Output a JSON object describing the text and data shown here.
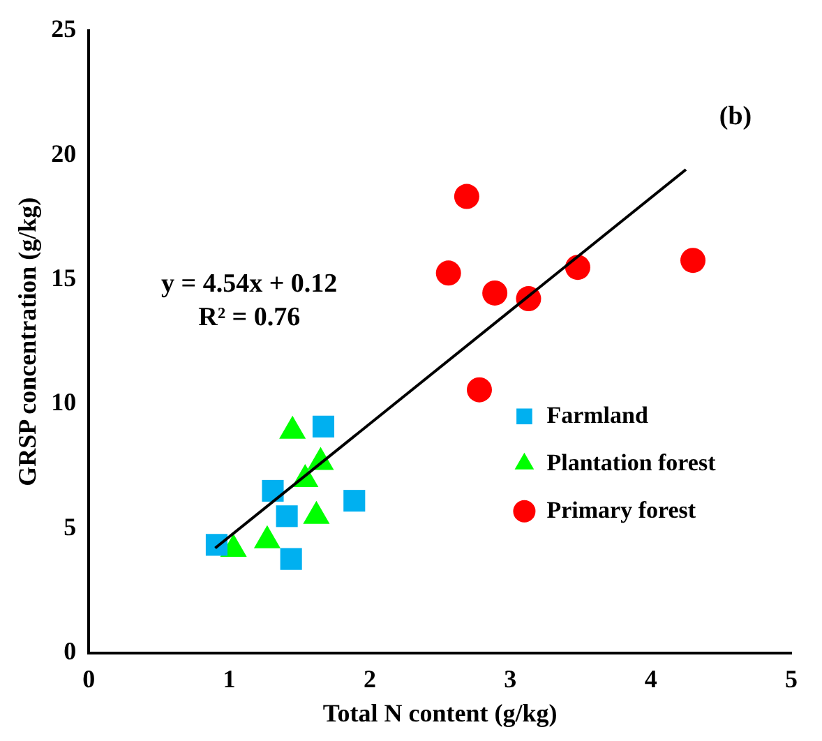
{
  "chart_data": {
    "type": "scatter",
    "xlabel": "Total N content (g/kg)",
    "ylabel": "GRSP concentration (g/kg)",
    "xlim": [
      0,
      5
    ],
    "xticks": [
      0,
      1,
      2,
      3,
      4,
      5
    ],
    "ylim": [
      0,
      25
    ],
    "yticks": [
      0,
      5,
      10,
      15,
      20,
      25
    ],
    "grid": false,
    "legend": "right",
    "annotations": [
      "(b)",
      "y = 4.54x + 0.12",
      "R² = 0.76"
    ],
    "series": [
      {
        "name": "Farmland",
        "color": "#00b0f0",
        "marker": "square",
        "x": [
          1.67,
          1.31,
          1.41,
          1.89,
          0.91,
          1.44
        ],
        "values": [
          9.09,
          6.51,
          5.49,
          6.11,
          4.34,
          3.77
        ]
      },
      {
        "name": "Plantation forest",
        "color": "#00ff00",
        "marker": "triangle",
        "x": [
          1.45,
          1.65,
          1.54,
          1.62,
          1.27,
          1.03
        ],
        "values": [
          8.91,
          7.66,
          6.97,
          5.49,
          4.51,
          4.17
        ]
      },
      {
        "name": "Primary forest",
        "color": "#ff0000",
        "marker": "circle",
        "x": [
          2.69,
          2.56,
          2.89,
          3.13,
          3.48,
          4.3,
          2.78
        ],
        "values": [
          18.34,
          15.26,
          14.46,
          14.23,
          15.49,
          15.77,
          10.57
        ]
      },
      {
        "type": "line",
        "color": "#000000",
        "marker": "none",
        "x": [
          0.9,
          4.25
        ],
        "values": [
          4.21,
          19.42
        ]
      }
    ]
  }
}
